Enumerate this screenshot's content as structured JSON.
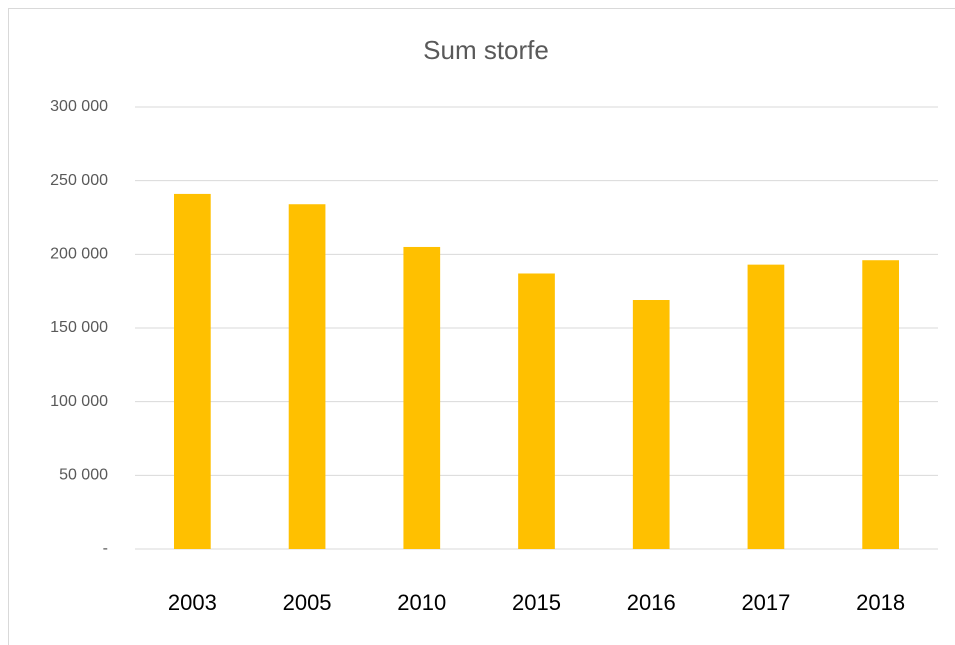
{
  "chart_data": {
    "type": "bar",
    "title": "Sum storfe",
    "categories": [
      "2003",
      "2005",
      "2010",
      "2015",
      "2016",
      "2017",
      "2018"
    ],
    "values": [
      241000,
      234000,
      205000,
      187000,
      169000,
      193000,
      196000
    ],
    "color": "#ffc000",
    "ylim": [
      0,
      300000
    ],
    "yticks": [
      {
        "value": 0,
        "label": "-"
      },
      {
        "value": 50000,
        "label": "50 000"
      },
      {
        "value": 100000,
        "label": "100 000"
      },
      {
        "value": 150000,
        "label": "150 000"
      },
      {
        "value": 200000,
        "label": "200 000"
      },
      {
        "value": 250000,
        "label": "250 000"
      },
      {
        "value": 300000,
        "label": "300 000"
      }
    ],
    "grid": true
  }
}
